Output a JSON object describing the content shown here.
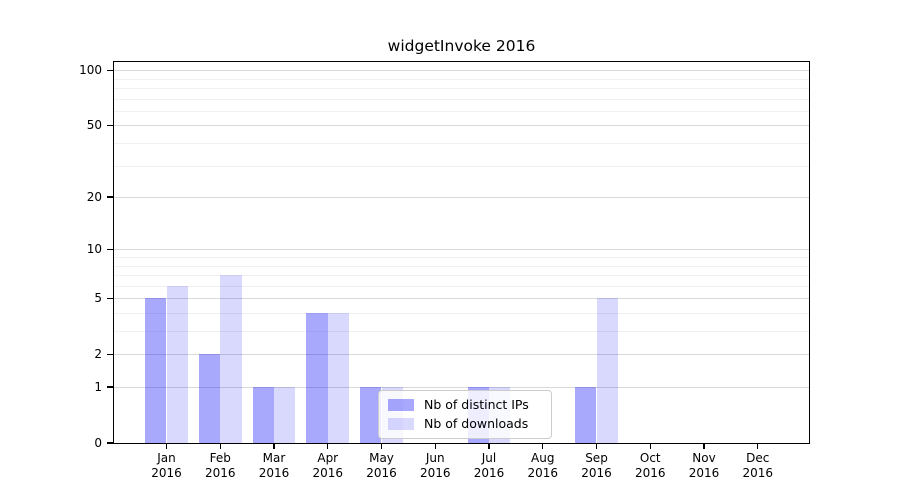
{
  "chart_data": {
    "type": "bar",
    "title": "widgetInvoke 2016",
    "categories": [
      "Jan",
      "Feb",
      "Mar",
      "Apr",
      "May",
      "Jun",
      "Jul",
      "Aug",
      "Sep",
      "Oct",
      "Nov",
      "Dec"
    ],
    "x_year_label": "2016",
    "series": [
      {
        "key": "distinct-ips",
        "name": "Nb of distinct IPs",
        "color": "rgba(0,0,245,0.34)",
        "values": [
          5,
          2,
          1,
          4,
          1,
          0,
          1,
          0,
          1,
          0,
          0,
          0
        ]
      },
      {
        "key": "downloads",
        "name": "Nb of downloads",
        "color": "rgba(0,0,245,0.15)",
        "values": [
          6,
          7,
          1,
          4,
          1,
          0,
          1,
          0,
          5,
          0,
          0,
          0
        ]
      }
    ],
    "y_axis": {
      "ticks": [
        0,
        1,
        2,
        5,
        10,
        20,
        50,
        100
      ],
      "minor_ticks": [
        3,
        4,
        6,
        7,
        8,
        9,
        30,
        40,
        60,
        70,
        80,
        90
      ],
      "scale": "log(1+x)",
      "ylim": [
        0,
        112
      ]
    },
    "grid": true,
    "legend_position": "inside-bottom-center"
  },
  "colors": {
    "background": "#ffffff",
    "axis": "#000000",
    "text": "#000000",
    "grid_major": "#d9d9d9",
    "grid_minor": "#f0f0f0",
    "legend_border": "#cccccc",
    "legend_background": "rgba(255,255,255,0.8)"
  }
}
